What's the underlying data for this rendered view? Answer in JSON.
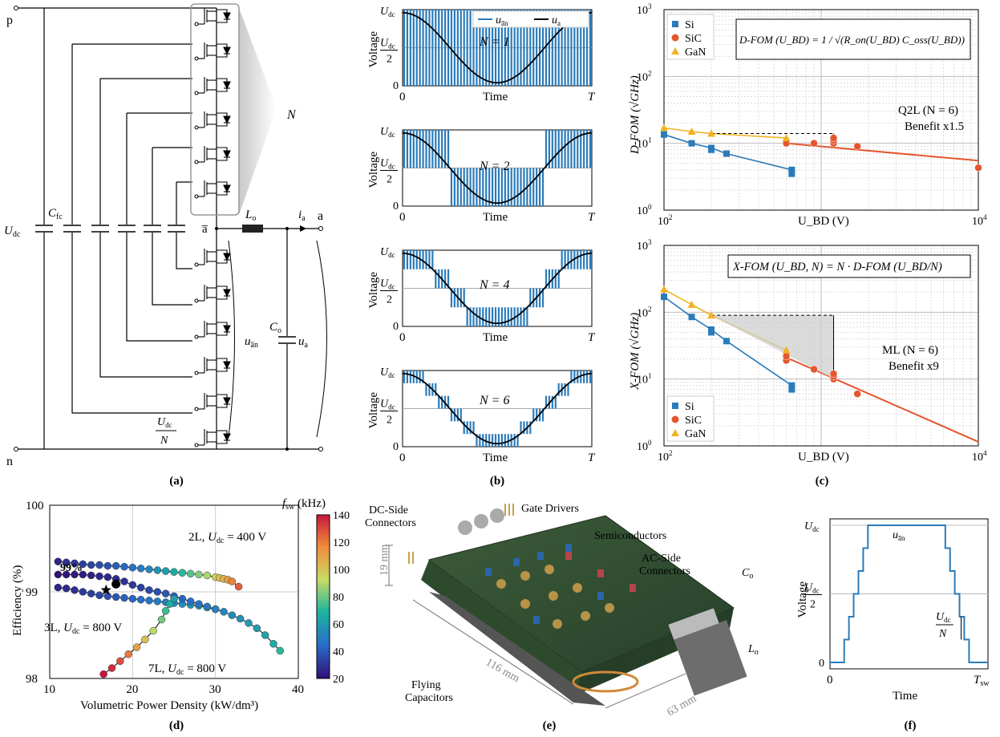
{
  "captions": {
    "a": "(a)",
    "b": "(b)",
    "c": "(c)",
    "d": "(d)",
    "e": "(e)",
    "f": "(f)"
  },
  "panel_a": {
    "node_p": "p",
    "node_n": "n",
    "node_a": "a",
    "node_abar": "a̅",
    "udc": "U",
    "udc_sub": "dc",
    "cfc": "C",
    "cfc_sub": "fc",
    "lo": "L",
    "lo_sub": "o",
    "co": "C",
    "co_sub": "o",
    "ia": "i",
    "ia_sub": "a",
    "uan": "u",
    "uan_sub": "a̅n",
    "ua": "u",
    "ua_sub": "a",
    "N": "N",
    "step_num": "U",
    "step_num_sub": "dc",
    "step_den": "N"
  },
  "panel_b": {
    "ylabel": "Voltage",
    "xlabel": "Time",
    "x0": "0",
    "xT": "T",
    "y_top": "U",
    "y_top_sub": "dc",
    "y_mid_num": "U",
    "y_mid_sub": "dc",
    "y_mid_den": "2",
    "y0": "0",
    "legend": [
      {
        "name": "u",
        "sub": "a̅n",
        "color": "#2b7bba"
      },
      {
        "name": "u",
        "sub": "a",
        "color": "#000000"
      }
    ],
    "subplots": [
      {
        "N": "N = 1",
        "levels": 1
      },
      {
        "N": "N = 2",
        "levels": 2
      },
      {
        "N": "N = 4",
        "levels": 4
      },
      {
        "N": "N = 6",
        "levels": 6
      }
    ]
  },
  "chart_data": [
    {
      "type": "scatter",
      "id": "c-top",
      "log_x": true,
      "log_y": true,
      "xlim": [
        100,
        10000
      ],
      "ylim": [
        1,
        1000
      ],
      "xlabel": "U_BD (V)",
      "ylabel": "D-FOM (√GHz)",
      "formula": "D-FOM (U_BD) = 1 / √(R_on(U_BD) C_oss(U_BD))",
      "annotation": "Q2L (N = 6)",
      "benefit": "Benefit x1.5",
      "legend": "top-left",
      "series": [
        {
          "name": "Si",
          "color": "#2b7bba",
          "marker": "square",
          "points": [
            [
              100,
              13.5
            ],
            [
              150,
              10
            ],
            [
              200,
              8.5
            ],
            [
              200,
              8
            ],
            [
              250,
              7
            ],
            [
              650,
              4
            ],
            [
              650,
              3.5
            ]
          ]
        },
        {
          "name": "SiC",
          "color": "#e4572e",
          "marker": "circle",
          "points": [
            [
              600,
              10
            ],
            [
              900,
              10
            ],
            [
              1200,
              10
            ],
            [
              1200,
              11
            ],
            [
              1200,
              12
            ],
            [
              1700,
              9
            ],
            [
              10000,
              4.3
            ]
          ]
        },
        {
          "name": "GaN",
          "color": "#f0b323",
          "marker": "triangle",
          "points": [
            [
              100,
              17
            ],
            [
              150,
              15
            ],
            [
              200,
              14
            ],
            [
              600,
              12
            ]
          ]
        }
      ]
    },
    {
      "type": "scatter",
      "id": "c-bottom",
      "log_x": true,
      "log_y": true,
      "xlim": [
        100,
        10000
      ],
      "ylim": [
        1,
        1000
      ],
      "xlabel": "U_BD (V)",
      "ylabel": "X-FOM (√GHz)",
      "formula": "X-FOM (U_BD, N) = N · D-FOM (U_BD/N)",
      "annotation": "ML (N = 6)",
      "benefit": "Benefit x9",
      "legend": "bottom-left",
      "series": [
        {
          "name": "Si",
          "color": "#2b7bba",
          "marker": "square",
          "points": [
            [
              100,
              170
            ],
            [
              150,
              85
            ],
            [
              200,
              55
            ],
            [
              200,
              50
            ],
            [
              250,
              37
            ],
            [
              650,
              8
            ],
            [
              650,
              7
            ]
          ]
        },
        {
          "name": "SiC",
          "color": "#e4572e",
          "marker": "circle",
          "points": [
            [
              600,
              19
            ],
            [
              600,
              22
            ],
            [
              900,
              14
            ],
            [
              1200,
              10
            ],
            [
              1200,
              11
            ],
            [
              1200,
              12
            ],
            [
              1700,
              6
            ]
          ]
        },
        {
          "name": "GaN",
          "color": "#f0b323",
          "marker": "triangle",
          "points": [
            [
              100,
              220
            ],
            [
              150,
              130
            ],
            [
              200,
              90
            ],
            [
              600,
              27
            ]
          ]
        }
      ]
    },
    {
      "type": "scatter",
      "id": "d",
      "xlim": [
        10,
        40
      ],
      "ylim": [
        98,
        100
      ],
      "xlabel": "Volumetric Power Density (kW/dm³)",
      "ylabel": "Efficiency (%)",
      "colorbar": {
        "label": "f_sw (kHz)",
        "min": 20,
        "max": 140,
        "ticks": [
          20,
          40,
          60,
          80,
          100,
          120,
          140
        ]
      },
      "labels": [
        "2L, U_dc = 400 V",
        "3L, U_dc = 800 V",
        "7L, U_dc = 800 V",
        "99%"
      ],
      "series": [
        {
          "name": "2L, U_dc = 400 V",
          "points": [
            [
              11,
              99.35,
              25
            ],
            [
              12,
              99.34,
              28
            ],
            [
              13,
              99.33,
              30
            ],
            [
              14,
              99.32,
              32
            ],
            [
              15,
              99.31,
              33
            ],
            [
              16,
              99.31,
              35
            ],
            [
              17,
              99.3,
              37
            ],
            [
              18,
              99.3,
              40
            ],
            [
              19,
              99.29,
              42
            ],
            [
              20,
              99.28,
              45
            ],
            [
              21,
              99.27,
              48
            ],
            [
              22,
              99.26,
              52
            ],
            [
              23,
              99.25,
              56
            ],
            [
              24,
              99.24,
              60
            ],
            [
              25,
              99.23,
              65
            ],
            [
              26,
              99.22,
              70
            ],
            [
              27,
              99.21,
              76
            ],
            [
              28,
              99.2,
              82
            ],
            [
              29,
              99.19,
              88
            ],
            [
              30,
              99.17,
              95
            ],
            [
              30.5,
              99.16,
              100
            ],
            [
              31,
              99.15,
              105
            ],
            [
              31.5,
              99.14,
              110
            ],
            [
              32,
              99.12,
              118
            ],
            [
              32.8,
              99.06,
              125
            ]
          ]
        },
        {
          "name": "3L, U_dc = 800 V",
          "points": [
            [
              11,
              99.05,
              25
            ],
            [
              12,
              99.04,
              26
            ],
            [
              13,
              99.02,
              28
            ],
            [
              14,
              99.0,
              30
            ],
            [
              15,
              98.98,
              32
            ],
            [
              16,
              98.96,
              34
            ],
            [
              17,
              98.95,
              36
            ],
            [
              18,
              98.94,
              38
            ],
            [
              19,
              98.93,
              40
            ],
            [
              20,
              98.92,
              42
            ],
            [
              21,
              98.91,
              44
            ],
            [
              22,
              98.9,
              46
            ],
            [
              23,
              98.89,
              48
            ],
            [
              24,
              98.88,
              50
            ],
            [
              25,
              98.87,
              52
            ],
            [
              26,
              98.86,
              55
            ],
            [
              27,
              98.85,
              58
            ],
            [
              28,
              98.84,
              62
            ],
            [
              29,
              98.82,
              70
            ],
            [
              30,
              98.8,
              80
            ]
          ]
        },
        {
          "name": "7L, U_dc = 800 V",
          "points": [
            [
              11,
              99.2,
              20
            ],
            [
              12,
              99.2,
              21
            ],
            [
              13,
              99.2,
              22
            ],
            [
              14,
              99.2,
              23
            ],
            [
              15,
              99.19,
              24
            ],
            [
              16,
              99.18,
              25
            ],
            [
              17,
              99.17,
              26
            ],
            [
              18,
              99.15,
              27
            ],
            [
              19,
              99.12,
              28
            ],
            [
              20,
              99.08,
              30
            ],
            [
              21,
              99.05,
              32
            ],
            [
              22,
              99.02,
              34
            ],
            [
              23,
              99.0,
              36
            ],
            [
              24,
              98.98,
              38
            ],
            [
              25,
              98.95,
              40
            ],
            [
              26,
              98.92,
              42
            ],
            [
              27,
              98.89,
              44
            ],
            [
              28,
              98.86,
              46
            ],
            [
              29,
              98.83,
              48
            ],
            [
              30,
              98.8,
              50
            ],
            [
              31,
              98.77,
              52
            ],
            [
              32,
              98.73,
              54
            ],
            [
              33,
              98.69,
              56
            ],
            [
              34,
              98.64,
              58
            ],
            [
              35,
              98.58,
              60
            ],
            [
              36,
              98.5,
              62
            ],
            [
              37,
              98.4,
              65
            ],
            [
              37.8,
              98.32,
              70
            ]
          ]
        },
        {
          "name": "branch",
          "points": [
            [
              16.5,
              98.05,
              140
            ],
            [
              17.5,
              98.12,
              135
            ],
            [
              18.5,
              98.2,
              128
            ],
            [
              19.5,
              98.28,
              120
            ],
            [
              20.5,
              98.36,
              110
            ],
            [
              21.5,
              98.45,
              100
            ],
            [
              22.5,
              98.55,
              90
            ],
            [
              23.5,
              98.68,
              80
            ],
            [
              24,
              98.78,
              72
            ],
            [
              24.5,
              98.86,
              66
            ],
            [
              25,
              98.92,
              60
            ]
          ]
        }
      ]
    },
    {
      "type": "line",
      "id": "f",
      "xlim": [
        0,
        1
      ],
      "ylim": [
        0,
        1
      ],
      "xlabel": "Time",
      "ylabel": "Voltage",
      "x0": "0",
      "x1": "T_sw",
      "series": [
        {
          "name": "u_a̅n",
          "color": "#2b7bba",
          "steps": [
            0,
            1,
            2,
            3,
            4,
            5,
            6,
            5,
            4,
            3,
            2,
            1,
            0
          ]
        }
      ]
    }
  ],
  "panel_c_labels": {
    "si": "Si",
    "sic": "SiC",
    "gan": "GaN",
    "x10e2": "10",
    "x10e4": "10",
    "e2": "2",
    "e4": "4",
    "e3": "3",
    "e0": "0",
    "e1": "1",
    "ten": "10"
  },
  "panel_d_labels": {
    "yticks": [
      "98",
      "99",
      "100"
    ],
    "xticks": [
      "10",
      "20",
      "30",
      "40"
    ],
    "cb_label": "f",
    "cb_sub": "sw",
    "cb_unit": " (kHz)",
    "l2": "2L, ",
    "l3": "3L, ",
    "l7": "7L, ",
    "v400": " = 400 V",
    "v800": " = 800 V",
    "p99": "99%"
  },
  "panel_e": {
    "dc_side": [
      "DC-Side",
      "Connectors"
    ],
    "gate": "Gate Drivers",
    "semi": "Semiconductors",
    "ac_side": [
      "AC-Side",
      "Connectors"
    ],
    "flying": [
      "Flying",
      "Capacitors"
    ],
    "dim_h": "19 mm",
    "dim_l": "116 mm",
    "dim_w": "63 mm",
    "co": "C",
    "co_sub": "o",
    "lo": "L",
    "lo_sub": "o"
  },
  "panel_f": {
    "y_top": "U",
    "y_top_sub": "dc",
    "y_mid_num": "U",
    "y_mid_sub": "dc",
    "y_mid_den": "2",
    "y0": "0",
    "step_num": "U",
    "step_sub": "dc",
    "step_den": "N",
    "uan": "u",
    "uan_sub": "a̅n"
  }
}
